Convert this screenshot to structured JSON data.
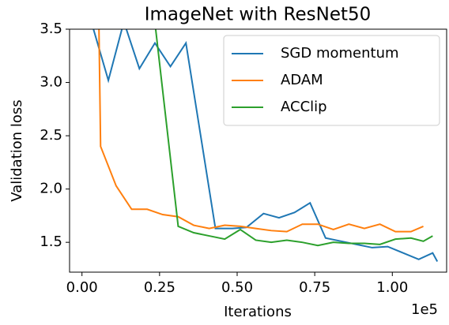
{
  "chart_data": {
    "type": "line",
    "title": "ImageNet with ResNet50",
    "x_label": "Iterations",
    "y_label": "Validation loss",
    "x_offset_label": "1e5",
    "xlim": [
      -0.04,
      1.175
    ],
    "ylim": [
      1.22,
      3.5
    ],
    "xticks": [
      {
        "value": 0,
        "label": "0.00"
      },
      {
        "value": 0.25,
        "label": "0.25"
      },
      {
        "value": 0.5,
        "label": "0.50"
      },
      {
        "value": 0.75,
        "label": "0.75"
      },
      {
        "value": 1,
        "label": "1.00"
      }
    ],
    "yticks": [
      1.5,
      {
        "value": 2,
        "label": "2.0"
      },
      2.5,
      {
        "value": 3,
        "label": "3.0"
      },
      3.5
    ],
    "legend": "upper right",
    "series": [
      {
        "name": "SGD momentum",
        "color": "#1f77b4",
        "x": [
          0.035,
          0.085,
          0.135,
          0.185,
          0.235,
          0.285,
          0.335,
          0.43,
          0.485,
          0.53,
          0.585,
          0.635,
          0.685,
          0.735,
          0.785,
          0.835,
          0.885,
          0.935,
          0.985,
          1.035,
          1.085,
          1.13,
          1.145
        ],
        "values": [
          3.52,
          3.02,
          3.57,
          3.13,
          3.37,
          3.15,
          3.37,
          1.63,
          1.63,
          1.64,
          1.77,
          1.73,
          1.78,
          1.87,
          1.54,
          1.51,
          1.48,
          1.45,
          1.46,
          1.4,
          1.34,
          1.4,
          1.32
        ]
      },
      {
        "name": "ADAM",
        "color": "#ff7f0e",
        "x": [
          0.05,
          0.06,
          0.11,
          0.16,
          0.21,
          0.26,
          0.31,
          0.36,
          0.41,
          0.46,
          0.51,
          0.56,
          0.61,
          0.66,
          0.71,
          0.76,
          0.81,
          0.86,
          0.91,
          0.96,
          1.01,
          1.06,
          1.1
        ],
        "values": [
          4.5,
          2.4,
          2.03,
          1.81,
          1.81,
          1.76,
          1.74,
          1.66,
          1.63,
          1.66,
          1.65,
          1.63,
          1.61,
          1.6,
          1.67,
          1.67,
          1.62,
          1.67,
          1.63,
          1.67,
          1.6,
          1.6,
          1.65
        ]
      },
      {
        "name": "ACClip",
        "color": "#2ca02c",
        "x": [
          0.21,
          0.31,
          0.36,
          0.41,
          0.46,
          0.51,
          0.56,
          0.61,
          0.66,
          0.71,
          0.76,
          0.81,
          0.86,
          0.91,
          0.96,
          1.01,
          1.06,
          1.1,
          1.13
        ],
        "values": [
          4.2,
          1.65,
          1.59,
          1.56,
          1.53,
          1.62,
          1.52,
          1.5,
          1.52,
          1.5,
          1.47,
          1.5,
          1.49,
          1.49,
          1.48,
          1.53,
          1.54,
          1.51,
          1.56
        ]
      }
    ]
  }
}
